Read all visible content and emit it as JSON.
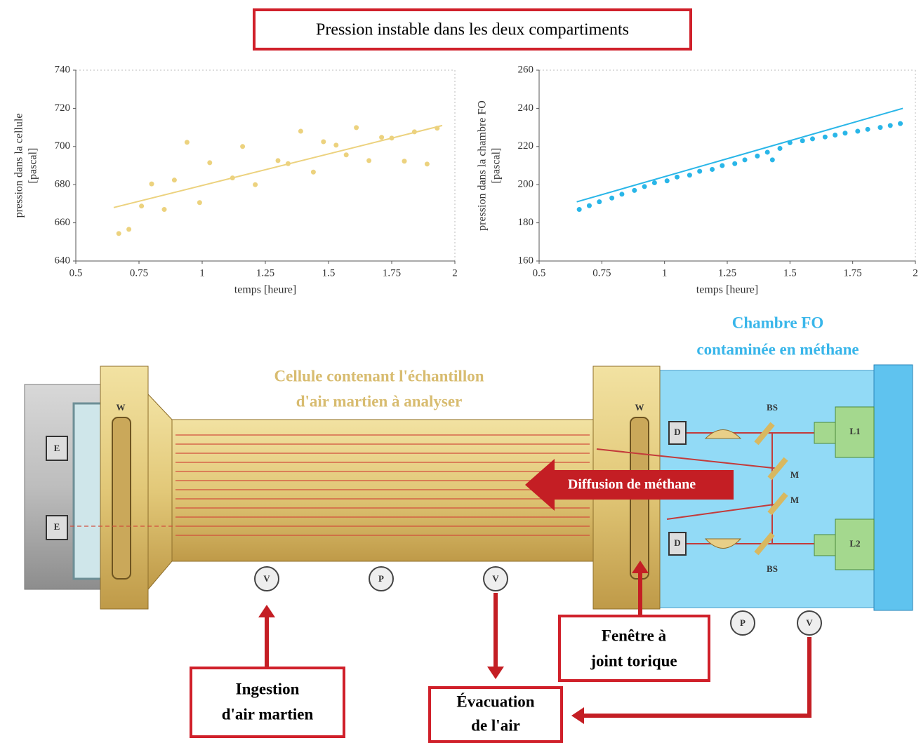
{
  "chart_data": [
    {
      "type": "scatter",
      "xlabel": "temps [heure]",
      "ylabel": [
        "pression dans la cellule",
        "[pascal]"
      ],
      "color": "#ecd27e",
      "x": [
        0.67,
        0.71,
        0.76,
        0.8,
        0.85,
        0.89,
        0.94,
        0.99,
        1.03,
        1.12,
        1.16,
        1.21,
        1.3,
        1.34,
        1.39,
        1.44,
        1.48,
        1.53,
        1.57,
        1.61,
        1.66,
        1.71,
        1.75,
        1.8,
        1.84,
        1.89,
        1.93
      ],
      "values": [
        654.4,
        656.6,
        668.8,
        680.4,
        667,
        682.4,
        702.2,
        670.6,
        691.5,
        683.5,
        700,
        680,
        692.6,
        691,
        708,
        686.6,
        702.5,
        700.7,
        695.6,
        709.9,
        692.6,
        704.8,
        704.4,
        692.3,
        707.7,
        690.8,
        709.6
      ],
      "trend_x": [
        0.65,
        1.95
      ],
      "trend_values": [
        668,
        711
      ],
      "xlim": [
        0.5,
        2
      ],
      "xticks": [
        0.5,
        0.75,
        1,
        1.25,
        1.5,
        1.75,
        2
      ],
      "ylim": [
        640,
        740
      ],
      "yticks": [
        640,
        660,
        680,
        700,
        720,
        740
      ]
    },
    {
      "type": "scatter",
      "xlabel": "temps [heure]",
      "ylabel": [
        "pression dans la chambre FO",
        "[pascal]"
      ],
      "color": "#29b6e8",
      "x": [
        0.66,
        0.7,
        0.74,
        0.79,
        0.83,
        0.88,
        0.92,
        0.96,
        1.01,
        1.05,
        1.1,
        1.14,
        1.19,
        1.23,
        1.28,
        1.32,
        1.37,
        1.41,
        1.43,
        1.46,
        1.5,
        1.55,
        1.59,
        1.64,
        1.68,
        1.72,
        1.77,
        1.81,
        1.86,
        1.9,
        1.94
      ],
      "values": [
        187,
        189,
        191,
        193,
        195,
        197,
        199,
        201,
        202,
        204,
        205,
        207,
        208,
        210,
        211,
        213,
        215,
        217,
        213,
        219,
        222,
        223,
        224,
        225,
        226,
        227,
        228,
        229,
        230,
        231,
        232
      ],
      "trend_x": [
        0.65,
        1.95
      ],
      "trend_values": [
        191,
        240
      ],
      "xlim": [
        0.5,
        2
      ],
      "xticks": [
        0.5,
        0.75,
        1,
        1.25,
        1.5,
        1.75,
        2
      ],
      "ylim": [
        160,
        260
      ],
      "yticks": [
        160,
        180,
        200,
        220,
        240,
        260
      ]
    }
  ],
  "diagram": {
    "title": "Pression instable dans les deux compartiments",
    "cell_label": [
      "Cellule contenant l'échantillon",
      "d'air martien à analyser"
    ],
    "chamber_label": [
      "Chambre FO",
      "contaminée en méthane"
    ],
    "diffusion": "Diffusion de méthane",
    "window": [
      "Fenêtre à",
      "joint torique"
    ],
    "ingestion": [
      "Ingestion",
      "d'air martien"
    ],
    "evacuation": [
      "Évacuation",
      "de l'air"
    ],
    "components": [
      "E",
      "E",
      "W",
      "W",
      "BS",
      "BS",
      "M",
      "M",
      "L1",
      "L2",
      "D",
      "D",
      "V",
      "P",
      "V",
      "P",
      "V"
    ]
  }
}
